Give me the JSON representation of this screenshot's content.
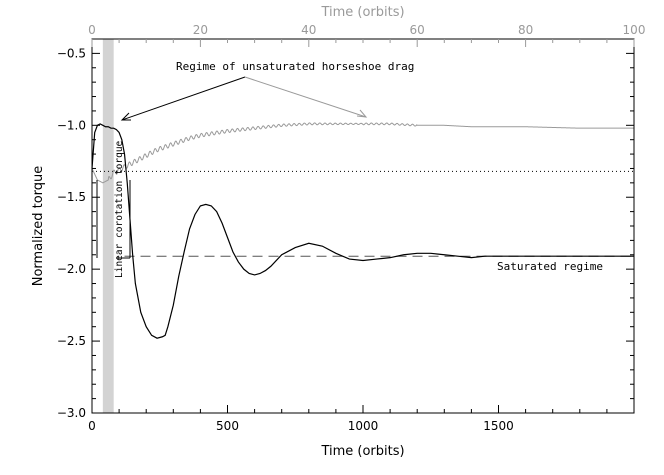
{
  "chart_data": {
    "type": "line",
    "title": "",
    "xlabel": "Time (orbits)",
    "ylabel": "Normalized torque",
    "xlabel_top": "Time (orbits)",
    "xlim": [
      0,
      2000
    ],
    "xlim_top": [
      0,
      100
    ],
    "ylim": [
      -3.0,
      -0.4
    ],
    "xticks": [
      "0",
      "500",
      "1000",
      "1500"
    ],
    "xticks_top": [
      "0",
      "20",
      "40",
      "60",
      "80",
      "100"
    ],
    "yticks": [
      "-0.5",
      "-1.0",
      "-1.5",
      "-2.0",
      "-2.5",
      "-3.0"
    ],
    "grid": false,
    "shaded_band": {
      "x_from": 40,
      "x_to": 80,
      "color": "#d3d3d3"
    },
    "reference_lines": [
      {
        "style": "dotted",
        "y": -1.32
      },
      {
        "style": "dashed",
        "y": -1.91
      }
    ],
    "series": [
      {
        "axis": "bottom",
        "color": "#000000",
        "x": [
          0,
          10,
          20,
          30,
          40,
          50,
          60,
          70,
          80,
          90,
          100,
          110,
          120,
          130,
          140,
          150,
          160,
          180,
          200,
          220,
          240,
          260,
          270,
          280,
          300,
          320,
          340,
          360,
          380,
          400,
          420,
          440,
          460,
          480,
          500,
          520,
          540,
          560,
          580,
          600,
          620,
          640,
          660,
          700,
          750,
          800,
          850,
          900,
          950,
          1000,
          1050,
          1100,
          1150,
          1200,
          1250,
          1300,
          1350,
          1400,
          1450,
          1500,
          1600,
          1700,
          1800,
          1900,
          2000
        ],
        "y": [
          -1.3,
          -1.05,
          -1.0,
          -0.99,
          -1.0,
          -1.01,
          -1.01,
          -1.02,
          -1.02,
          -1.03,
          -1.05,
          -1.1,
          -1.2,
          -1.4,
          -1.65,
          -1.9,
          -2.1,
          -2.3,
          -2.4,
          -2.46,
          -2.48,
          -2.47,
          -2.46,
          -2.4,
          -2.25,
          -2.05,
          -1.88,
          -1.72,
          -1.62,
          -1.56,
          -1.55,
          -1.56,
          -1.6,
          -1.68,
          -1.78,
          -1.88,
          -1.95,
          -2.0,
          -2.03,
          -2.04,
          -2.03,
          -2.01,
          -1.98,
          -1.9,
          -1.85,
          -1.82,
          -1.84,
          -1.89,
          -1.93,
          -1.94,
          -1.93,
          -1.92,
          -1.9,
          -1.89,
          -1.89,
          -1.9,
          -1.91,
          -1.92,
          -1.91,
          -1.91,
          -1.91,
          -1.91,
          -1.91,
          -1.91,
          -1.91
        ]
      },
      {
        "axis": "top",
        "color": "#9a9a9a",
        "oscillating": true,
        "x": [
          0,
          1,
          2,
          3,
          4,
          6,
          8,
          10,
          12,
          15,
          18,
          20,
          25,
          30,
          35,
          40,
          45,
          50,
          55,
          60,
          65,
          70,
          80,
          90,
          100
        ],
        "y": [
          -1.3,
          -1.38,
          -1.4,
          -1.38,
          -1.33,
          -1.29,
          -1.25,
          -1.21,
          -1.17,
          -1.13,
          -1.09,
          -1.07,
          -1.04,
          -1.02,
          -1.0,
          -0.99,
          -0.99,
          -0.99,
          -0.99,
          -1.0,
          -1.0,
          -1.01,
          -1.01,
          -1.02,
          -1.02
        ]
      }
    ],
    "annotations": {
      "horseshoe": "Regime of unsaturated horseshoe drag",
      "saturated": "Saturated regime",
      "linear": "Linear corotation torque"
    }
  }
}
